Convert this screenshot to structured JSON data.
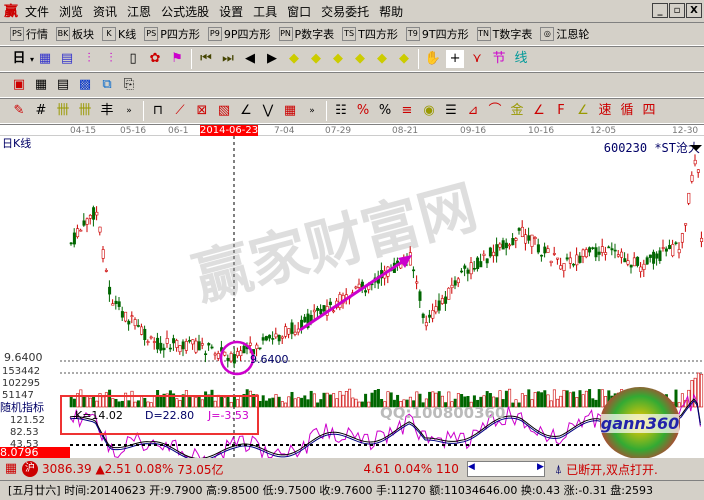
{
  "menu": {
    "logo": "赢",
    "items": [
      "文件",
      "浏览",
      "资讯",
      "江恩",
      "公式选股",
      "设置",
      "工具",
      "窗口",
      "交易委托",
      "帮助"
    ]
  },
  "window_controls": [
    "_",
    "▫",
    "X"
  ],
  "toolbar1": [
    {
      "icon": "PS",
      "label": "行情"
    },
    {
      "icon": "BK",
      "label": "板块"
    },
    {
      "icon": "K",
      "label": "K线"
    },
    {
      "icon": "PS",
      "label": "P四方形"
    },
    {
      "icon": "P9",
      "label": "9P四方形"
    },
    {
      "icon": "PN",
      "label": "P数字表"
    },
    {
      "icon": "TS",
      "label": "T四方形"
    },
    {
      "icon": "T9",
      "label": "9T四方形"
    },
    {
      "icon": "TN",
      "label": "T数字表"
    },
    {
      "icon": "◎",
      "label": "江恩轮"
    }
  ],
  "toolbar2": {
    "period": "日"
  },
  "dates": [
    "04-15",
    "05-16",
    "06-1",
    "2014-06-23",
    "7-04",
    "07-29",
    "08-21",
    "09-16",
    "10-16",
    "12-05",
    "12-30"
  ],
  "chart": {
    "title": "日K线",
    "stock": "600230 *ST沧大",
    "low_label": "9.6400",
    "low_marker": "9.6400",
    "watermark_qq": "QQ:100800360",
    "brand": "gann360",
    "watermark_site": "赢家财富网"
  },
  "volume": {
    "ticks": [
      "153442",
      "102295",
      "51147"
    ]
  },
  "kdj": {
    "title": "随机指标",
    "k": "K=14.02",
    "d": "D=22.80",
    "j": "J=-3.53",
    "ticks": [
      "121.52",
      "82.53",
      "43.53"
    ],
    "current": "8.0796",
    "colors": {
      "k": "#000000",
      "d": "#000080",
      "j": "#cc00cc"
    }
  },
  "status": {
    "market": "沪",
    "index": "3086.39",
    "change": "▲2.51",
    "pct": "0.08%",
    "amount": "73.05亿",
    "index2": "4.61 0.04% 110",
    "conn": "已断开,双点打开."
  },
  "info": "[五月廿六] 时间:20140623 开:9.7900 高:9.8500 低:9.7500 收:9.7600 手:11270 额:11034646.00 换:0.43 涨:-0.31 盘:2593",
  "colors": {
    "up": "#cc0000",
    "down": "#006600",
    "accent": "#cc00cc",
    "highlight": "#ff0000"
  }
}
